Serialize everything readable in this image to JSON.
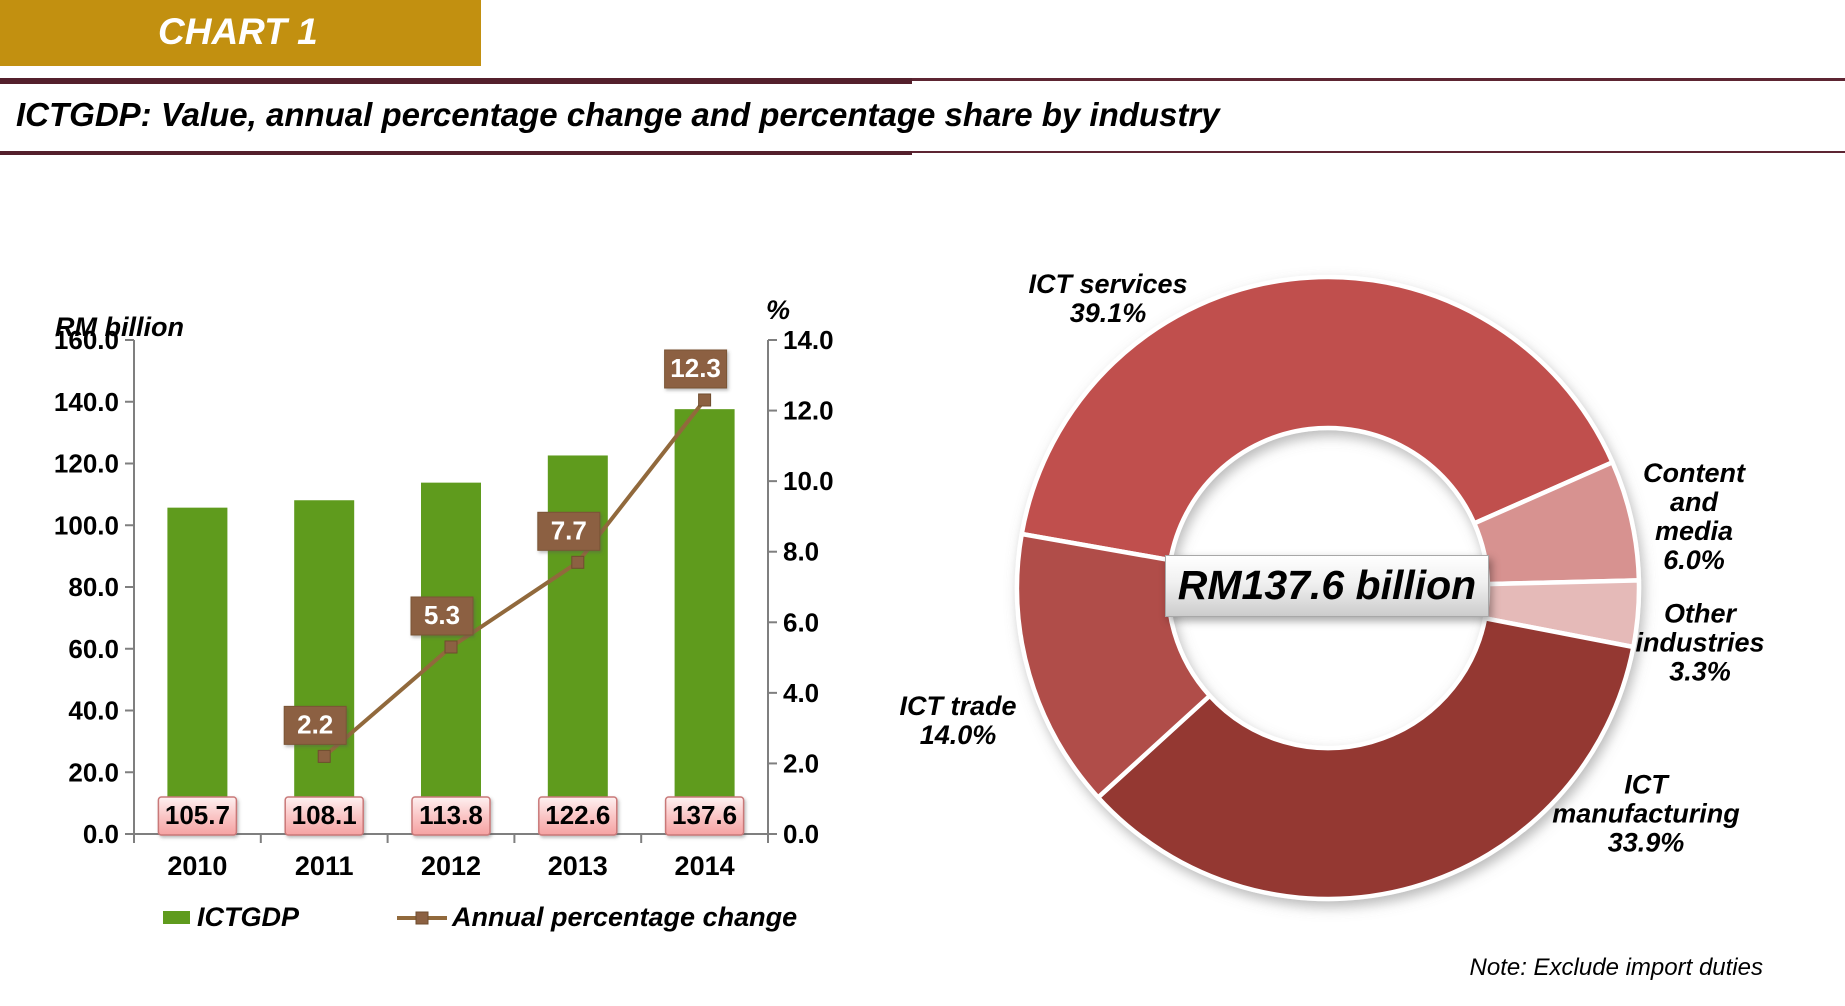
{
  "header": {
    "banner": "CHART 1",
    "title": "ICTGDP: Value, annual percentage change and percentage share by industry"
  },
  "note": "Note: Exclude import duties",
  "chart_data": [
    {
      "type": "bar",
      "subtype": "bar-line-combo-dual-axis",
      "categories": [
        "2010",
        "2011",
        "2012",
        "2013",
        "2014"
      ],
      "series": [
        {
          "name": "ICTGDP",
          "chart": "bar",
          "axis": "left",
          "unit": "RM billion",
          "values": [
            105.7,
            108.1,
            113.8,
            122.6,
            137.6
          ],
          "color": "#5F9B1D",
          "label_style": "pink-box"
        },
        {
          "name": "Annual percentage change",
          "chart": "line",
          "axis": "right",
          "unit": "%",
          "values": [
            null,
            2.2,
            5.3,
            7.7,
            12.3
          ],
          "color": "#91693C",
          "label_style": "brown-box"
        }
      ],
      "left_axis": {
        "title": "RM billion",
        "min": 0,
        "max": 160,
        "step": 20,
        "format": "0.0"
      },
      "right_axis": {
        "title": "%",
        "min": 0,
        "max": 14,
        "step": 2,
        "format": "0.0"
      },
      "grid": false,
      "legend_position": "bottom"
    },
    {
      "type": "pie",
      "donut": true,
      "center_label": "RM137.6 billion",
      "start_angle_deg": 280,
      "slices": [
        {
          "label": "ICT services",
          "pct": 39.1,
          "color": "#C0504D",
          "callout": "ICT services\n39.1%"
        },
        {
          "label": "Content and media",
          "pct": 6.0,
          "color": "#D79290",
          "callout": "Content and\nmedia\n6.0%"
        },
        {
          "label": "Other industries",
          "pct": 3.3,
          "color": "#E5BAB8",
          "callout": "Other\nindustries\n3.3%"
        },
        {
          "label": "ICT manufacturing",
          "pct": 33.9,
          "color": "#943733",
          "callout": "ICT\nmanufacturing\n33.9%"
        },
        {
          "label": "ICT trade",
          "pct": 14.0,
          "color": "#B04D49",
          "callout": "ICT trade\n14.0%"
        }
      ]
    }
  ],
  "colors": {
    "banner_gold": "#C29010",
    "rule_maroon": "#54202C",
    "axis_gray": "#7F7F7F",
    "bar_green": "#5F9B1D",
    "line_brown": "#91693C",
    "brown_label_box": "#8C6142",
    "pink_label_border": "#C97878",
    "center_box_border": "#A8A8A8"
  }
}
